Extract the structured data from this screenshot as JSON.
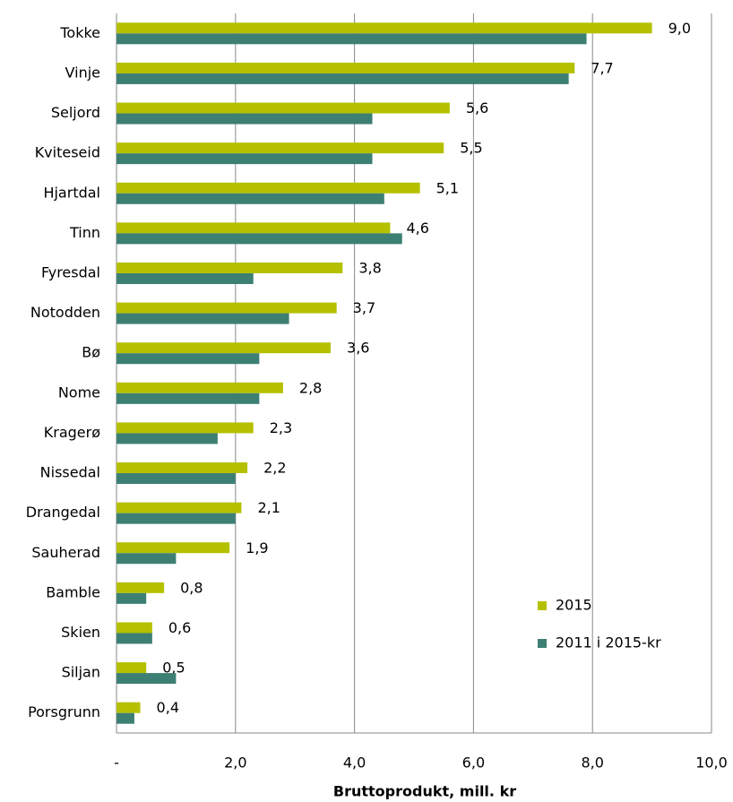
{
  "chart_data": {
    "type": "hbar",
    "xlabel": "Bruttoprodukt, mill. kr",
    "categories": [
      "Tokke",
      "Vinje",
      "Seljord",
      "Kviteseid",
      "Hjartdal",
      "Tinn",
      "Fyresdal",
      "Notodden",
      "Bø",
      "Nome",
      "Kragerø",
      "Nissedal",
      "Drangedal",
      "Sauherad",
      "Bamble",
      "Skien",
      "Siljan",
      "Porsgrunn"
    ],
    "series": [
      {
        "name": "2015",
        "color": "#b5c100",
        "values": [
          9.0,
          7.7,
          5.6,
          5.5,
          5.1,
          4.6,
          3.8,
          3.7,
          3.6,
          2.8,
          2.3,
          2.2,
          2.1,
          1.9,
          0.8,
          0.6,
          0.5,
          0.4
        ],
        "value_labels": [
          "9,0",
          "7,7",
          "5,6",
          "5,5",
          "5,1",
          "4,6",
          "3,8",
          "3,7",
          "3,6",
          "2,8",
          "2,3",
          "2,2",
          "2,1",
          "1,9",
          "0,8",
          "0,6",
          "0,5",
          "0,4"
        ]
      },
      {
        "name": "2011 i 2015-kr",
        "color": "#3d7f73",
        "values": [
          7.9,
          7.6,
          4.3,
          4.3,
          4.5,
          4.8,
          2.3,
          2.9,
          2.4,
          2.4,
          1.7,
          2.0,
          2.0,
          1.0,
          0.5,
          0.6,
          1.0,
          0.3
        ]
      }
    ],
    "xlim": [
      0,
      10
    ],
    "xticks": [
      {
        "value": 0,
        "label": "-"
      },
      {
        "value": 2,
        "label": "2,0"
      },
      {
        "value": 4,
        "label": "4,0"
      },
      {
        "value": 6,
        "label": "6,0"
      },
      {
        "value": 8,
        "label": "8,0"
      },
      {
        "value": 10,
        "label": "10,0"
      }
    ],
    "grid": true,
    "legend": "lower right"
  }
}
